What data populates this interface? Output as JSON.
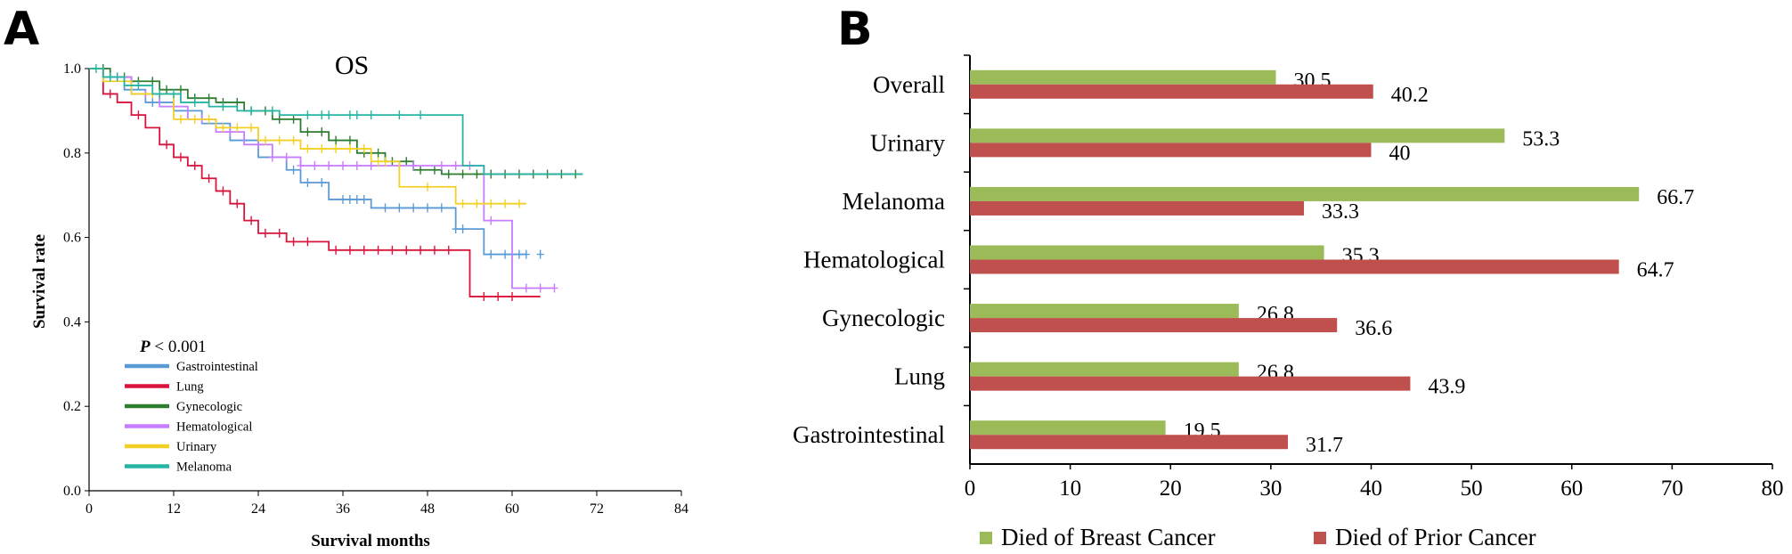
{
  "panels": {
    "a": {
      "letter": "A"
    },
    "b": {
      "letter": "B"
    }
  },
  "chart_data": [
    {
      "type": "line",
      "subtype": "kaplan-meier",
      "title": "OS",
      "xlabel": "Survival months",
      "ylabel": "Survival rate",
      "xlim": [
        0,
        84
      ],
      "ylim": [
        0.0,
        1.0
      ],
      "xticks": [
        "0",
        "12",
        "24",
        "36",
        "48",
        "60",
        "72",
        "84"
      ],
      "yticks": [
        "0.0",
        "0.2",
        "0.4",
        "0.6",
        "0.8",
        "1.0"
      ],
      "annotation": {
        "p_symbol": "P",
        "p_text": " < 0.001"
      },
      "legend_position": "bottom-left",
      "series": [
        {
          "name": "Gastrointestinal",
          "color": "#5b9bd5",
          "x": [
            0,
            2,
            5,
            8,
            12,
            16,
            20,
            24,
            28,
            30,
            34,
            40,
            44,
            52,
            56,
            62
          ],
          "y": [
            1.0,
            0.98,
            0.95,
            0.92,
            0.9,
            0.87,
            0.83,
            0.79,
            0.76,
            0.73,
            0.69,
            0.67,
            0.67,
            0.62,
            0.56,
            0.56
          ],
          "censor_x": [
            3,
            9,
            14,
            22,
            29,
            31,
            33,
            36,
            37,
            38,
            39,
            42,
            44,
            46,
            48,
            50,
            52,
            53,
            57,
            59,
            61,
            62,
            64
          ]
        },
        {
          "name": "Lung",
          "color": "#d9143c",
          "x": [
            0,
            2,
            4,
            6,
            8,
            10,
            12,
            14,
            16,
            18,
            20,
            22,
            24,
            28,
            34,
            40,
            54,
            64
          ],
          "y": [
            1.0,
            0.94,
            0.92,
            0.89,
            0.86,
            0.82,
            0.79,
            0.77,
            0.74,
            0.71,
            0.68,
            0.64,
            0.61,
            0.59,
            0.57,
            0.57,
            0.46,
            0.46
          ],
          "censor_x": [
            3,
            7,
            11,
            13,
            15,
            17,
            19,
            21,
            23,
            25,
            27,
            29,
            31,
            35,
            37,
            39,
            41,
            43,
            45,
            47,
            49,
            51,
            56,
            58,
            60
          ]
        },
        {
          "name": "Gynecologic",
          "color": "#2e7d32",
          "x": [
            0,
            3,
            6,
            10,
            14,
            18,
            22,
            26,
            30,
            34,
            38,
            42,
            46,
            50,
            70
          ],
          "y": [
            1.0,
            0.98,
            0.97,
            0.95,
            0.93,
            0.92,
            0.9,
            0.88,
            0.85,
            0.83,
            0.8,
            0.78,
            0.76,
            0.75,
            0.75
          ],
          "censor_x": [
            2,
            4,
            5,
            7,
            9,
            11,
            13,
            15,
            17,
            19,
            21,
            23,
            25,
            27,
            29,
            31,
            33,
            35,
            37,
            39,
            41,
            43,
            45,
            47,
            49,
            51,
            53,
            55,
            57,
            59,
            61,
            63,
            65,
            67,
            69
          ]
        },
        {
          "name": "Hematological",
          "color": "#c77dff",
          "x": [
            0,
            2,
            6,
            10,
            14,
            18,
            22,
            26,
            30,
            36,
            42,
            48,
            56,
            60,
            66
          ],
          "y": [
            1.0,
            0.98,
            0.94,
            0.91,
            0.88,
            0.85,
            0.82,
            0.79,
            0.77,
            0.77,
            0.77,
            0.77,
            0.64,
            0.48,
            0.48
          ],
          "censor_x": [
            4,
            8,
            12,
            16,
            20,
            24,
            26,
            28,
            30,
            32,
            34,
            36,
            38,
            40,
            44,
            46,
            50,
            52,
            54,
            57,
            62,
            64,
            66
          ]
        },
        {
          "name": "Urinary",
          "color": "#f2d024",
          "x": [
            0,
            2,
            6,
            12,
            18,
            24,
            30,
            40,
            44,
            50,
            52,
            62
          ],
          "y": [
            1.0,
            0.97,
            0.94,
            0.88,
            0.86,
            0.83,
            0.81,
            0.78,
            0.72,
            0.72,
            0.68,
            0.68
          ],
          "censor_x": [
            5,
            9,
            13,
            15,
            17,
            19,
            21,
            23,
            25,
            27,
            29,
            31,
            33,
            35,
            37,
            39,
            41,
            42,
            48,
            53,
            55,
            57,
            59,
            61
          ]
        },
        {
          "name": "Melanoma",
          "color": "#26b5a3",
          "x": [
            0,
            2,
            5,
            9,
            13,
            17,
            21,
            27,
            36,
            42,
            48,
            53,
            56,
            70
          ],
          "y": [
            1.0,
            0.98,
            0.96,
            0.94,
            0.92,
            0.91,
            0.9,
            0.89,
            0.89,
            0.89,
            0.89,
            0.77,
            0.75,
            0.75
          ],
          "censor_x": [
            1,
            3,
            4,
            7,
            10,
            12,
            15,
            19,
            23,
            26,
            31,
            33,
            34,
            37,
            38,
            40,
            44,
            47
          ]
        }
      ]
    },
    {
      "type": "bar",
      "orientation": "horizontal",
      "categories": [
        "Overall",
        "Urinary",
        "Melanoma",
        "Hematological",
        "Gynecologic",
        "Lung",
        "Gastrointestinal"
      ],
      "xlim": [
        0,
        80
      ],
      "xticks": [
        "0",
        "10",
        "20",
        "30",
        "40",
        "50",
        "60",
        "70",
        "80"
      ],
      "legend_position": "bottom",
      "series": [
        {
          "name": "Died of Breast Cancer",
          "color": "#9bbb59",
          "values": [
            30.5,
            53.3,
            66.7,
            35.3,
            26.8,
            26.8,
            19.5
          ],
          "labels": [
            "30.5",
            "53.3",
            "66.7",
            "35.3",
            "26.8",
            "26.8",
            "19.5"
          ]
        },
        {
          "name": "Died of Prior Cancer",
          "color": "#c0504d",
          "values": [
            40.2,
            40,
            33.3,
            64.7,
            36.6,
            43.9,
            31.7
          ],
          "labels": [
            "40.2",
            "40",
            "33.3",
            "64.7",
            "36.6",
            "43.9",
            "31.7"
          ]
        }
      ]
    }
  ]
}
